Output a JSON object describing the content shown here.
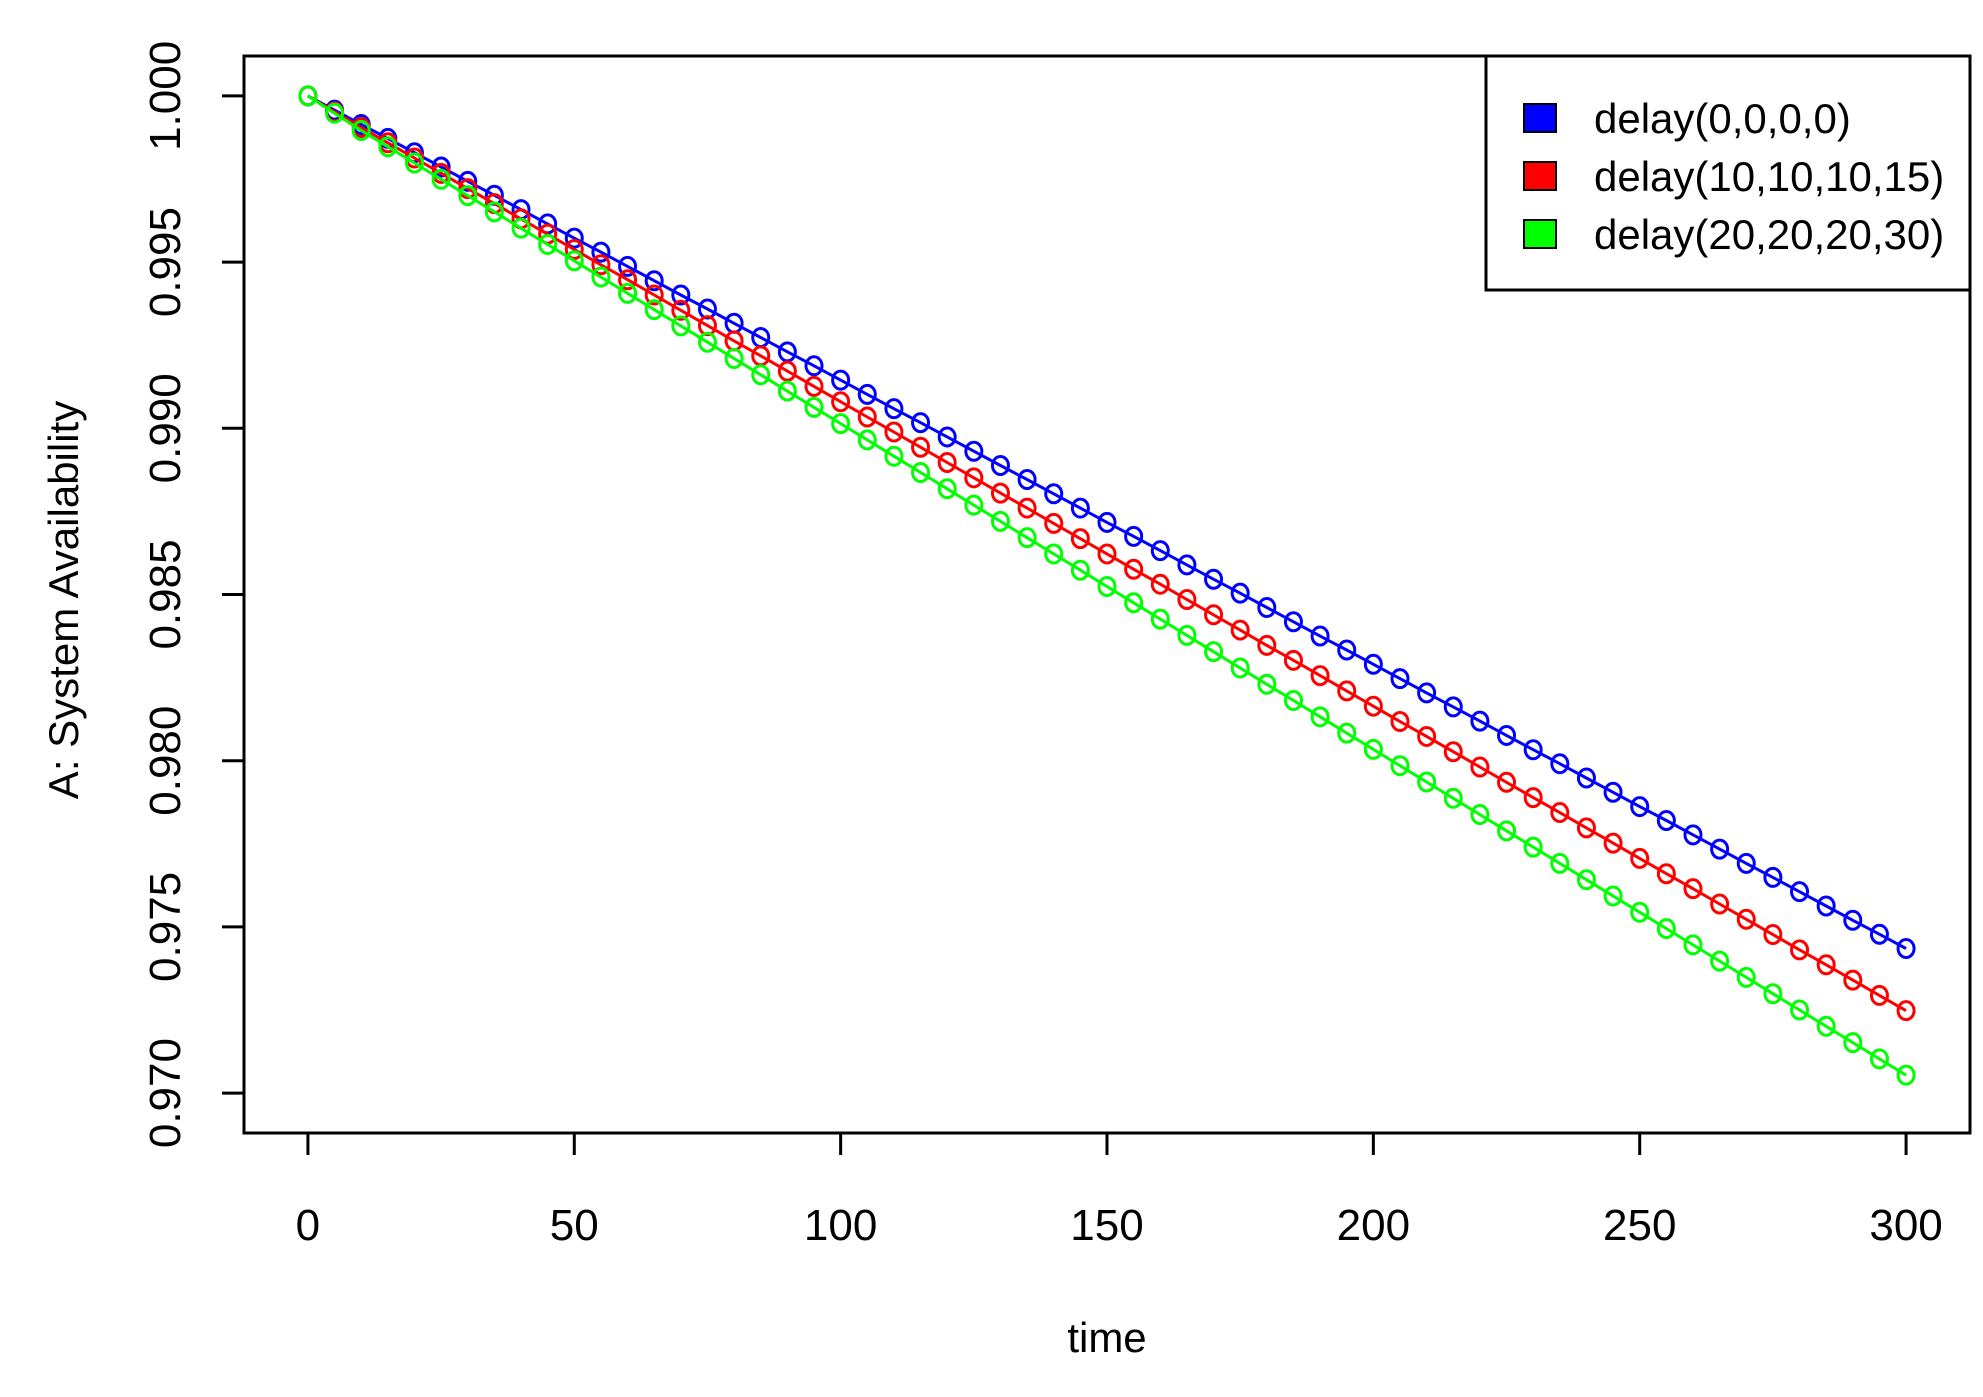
{
  "chart_data": {
    "type": "line",
    "xlabel": "time",
    "ylabel": "A: System Availability",
    "xlim": [
      -12,
      312
    ],
    "ylim": [
      0.9688,
      1.0012
    ],
    "x_ticks": [
      0,
      50,
      100,
      150,
      200,
      250,
      300
    ],
    "x_tick_labels": [
      "0",
      "50",
      "100",
      "150",
      "200",
      "250",
      "300"
    ],
    "y_ticks": [
      0.97,
      0.975,
      0.98,
      0.985,
      0.99,
      0.995,
      1.0
    ],
    "y_tick_labels": [
      "0.970",
      "0.975",
      "0.980",
      "0.985",
      "0.990",
      "0.995",
      "1.000"
    ],
    "legend_position": "top-right",
    "markers": "open-circle",
    "grid": false,
    "x": [
      0,
      5,
      10,
      15,
      20,
      25,
      30,
      35,
      40,
      45,
      50,
      55,
      60,
      65,
      70,
      75,
      80,
      85,
      90,
      95,
      100,
      105,
      110,
      115,
      120,
      125,
      130,
      135,
      140,
      145,
      150,
      155,
      160,
      165,
      170,
      175,
      180,
      185,
      190,
      195,
      200,
      205,
      210,
      215,
      220,
      225,
      230,
      235,
      240,
      245,
      250,
      255,
      260,
      265,
      270,
      275,
      280,
      285,
      290,
      295,
      300
    ],
    "series": [
      {
        "name": "delay(0,0,0,0)",
        "color": "#0000ff",
        "values": [
          1.0,
          0.99957,
          0.99914,
          0.99872,
          0.99829,
          0.99786,
          0.99743,
          0.99701,
          0.99658,
          0.99615,
          0.99572,
          0.9953,
          0.99487,
          0.99444,
          0.99401,
          0.99359,
          0.99316,
          0.99273,
          0.9923,
          0.99188,
          0.99145,
          0.99102,
          0.99059,
          0.99017,
          0.98974,
          0.98931,
          0.98888,
          0.98846,
          0.98803,
          0.9876,
          0.98717,
          0.98675,
          0.98632,
          0.98589,
          0.98546,
          0.98504,
          0.98461,
          0.98418,
          0.98375,
          0.98333,
          0.9829,
          0.98247,
          0.98204,
          0.98162,
          0.98119,
          0.98076,
          0.98033,
          0.97991,
          0.97948,
          0.97905,
          0.97862,
          0.9782,
          0.97777,
          0.97734,
          0.97691,
          0.97649,
          0.97606,
          0.97563,
          0.9752,
          0.97478,
          0.97435
        ]
      },
      {
        "name": "delay(10,10,10,15)",
        "color": "#ff0000",
        "values": [
          1.0,
          0.99952,
          0.99905,
          0.99859,
          0.99813,
          0.99767,
          0.99721,
          0.99676,
          0.9963,
          0.99584,
          0.99538,
          0.99492,
          0.99447,
          0.99401,
          0.99355,
          0.99309,
          0.99263,
          0.99218,
          0.99172,
          0.99126,
          0.9908,
          0.99034,
          0.98989,
          0.98943,
          0.98897,
          0.98851,
          0.98805,
          0.9876,
          0.98714,
          0.98668,
          0.98622,
          0.98576,
          0.98531,
          0.98485,
          0.98439,
          0.98393,
          0.98347,
          0.98302,
          0.98256,
          0.9821,
          0.98164,
          0.98118,
          0.98073,
          0.98027,
          0.97981,
          0.97935,
          0.97889,
          0.97844,
          0.97798,
          0.97752,
          0.97706,
          0.9766,
          0.97615,
          0.97569,
          0.97523,
          0.97477,
          0.97431,
          0.97386,
          0.9734,
          0.97294,
          0.97248
        ]
      },
      {
        "name": "delay(20,20,20,30)",
        "color": "#00ff00",
        "values": [
          1.0,
          0.99948,
          0.99896,
          0.99847,
          0.99798,
          0.99749,
          0.997,
          0.99651,
          0.99602,
          0.99553,
          0.99504,
          0.99455,
          0.99406,
          0.99357,
          0.99308,
          0.99259,
          0.9921,
          0.99161,
          0.99112,
          0.99063,
          0.99014,
          0.98965,
          0.98916,
          0.98867,
          0.98818,
          0.98769,
          0.9872,
          0.98671,
          0.98622,
          0.98573,
          0.98524,
          0.98475,
          0.98426,
          0.98377,
          0.98328,
          0.98279,
          0.9823,
          0.98181,
          0.98132,
          0.98083,
          0.98034,
          0.97985,
          0.97936,
          0.97887,
          0.97838,
          0.97789,
          0.9774,
          0.97691,
          0.97642,
          0.97593,
          0.97544,
          0.97495,
          0.97446,
          0.97397,
          0.97348,
          0.97299,
          0.9725,
          0.97201,
          0.97152,
          0.97103,
          0.97054
        ]
      }
    ]
  }
}
